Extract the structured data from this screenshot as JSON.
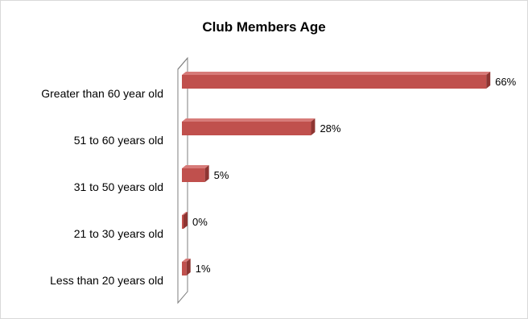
{
  "chart_data": {
    "type": "bar",
    "orientation": "horizontal",
    "title": "Club Members Age",
    "categories": [
      "Greater than  60 year old",
      "51 to 60 years old",
      "31 to 50 years old",
      "21 to 30 years old",
      "Less than  20 years old"
    ],
    "values": [
      66,
      28,
      5,
      0,
      1
    ],
    "value_labels": [
      "66%",
      "28%",
      "5%",
      "0%",
      "1%"
    ],
    "unit": "%",
    "xlim": [
      0,
      100
    ],
    "grid": false,
    "legend": "none",
    "style": "3d-bar",
    "colors": {
      "bar_front": "#c0504d",
      "bar_top": "#d77b79",
      "bar_side": "#8e3532",
      "axis_wall": "#7f7f7f"
    }
  }
}
